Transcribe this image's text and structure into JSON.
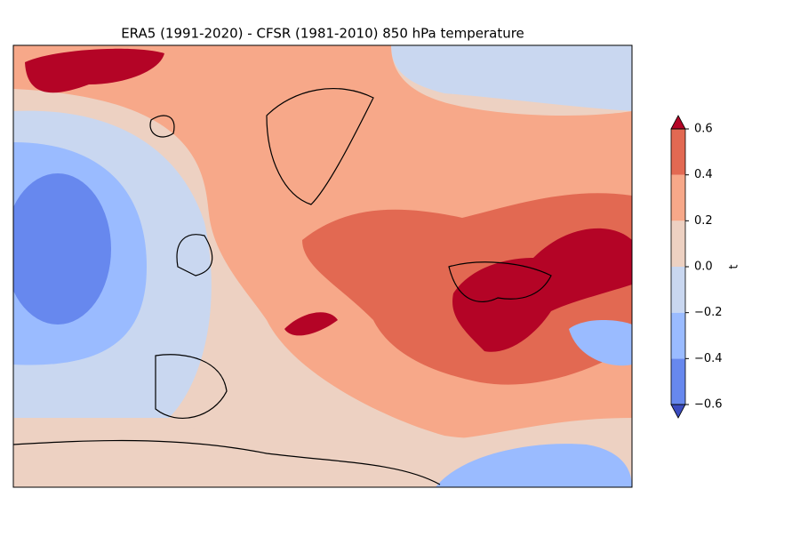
{
  "chart_data": {
    "type": "filled-contour",
    "title": "ERA5 (1991-2020) - CFSR (1981-2010) 850 hPa temperature",
    "colorbar": {
      "label": "t",
      "ylim": [
        -0.6,
        0.6
      ],
      "yticks": [
        {
          "value": -0.6,
          "label": "−0.6"
        },
        {
          "value": -0.4,
          "label": "−0.4"
        },
        {
          "value": -0.2,
          "label": "−0.2"
        },
        {
          "value": 0.0,
          "label": "0.0"
        },
        0.2,
        0.4,
        0.6
      ],
      "colors": [
        "#6788ee",
        "#9abbff",
        "#c9d7f0",
        "#edd1c2",
        "#f7a889",
        "#e26952"
      ],
      "under_color": "#3b4cc0",
      "over_color": "#b40426"
    }
  }
}
